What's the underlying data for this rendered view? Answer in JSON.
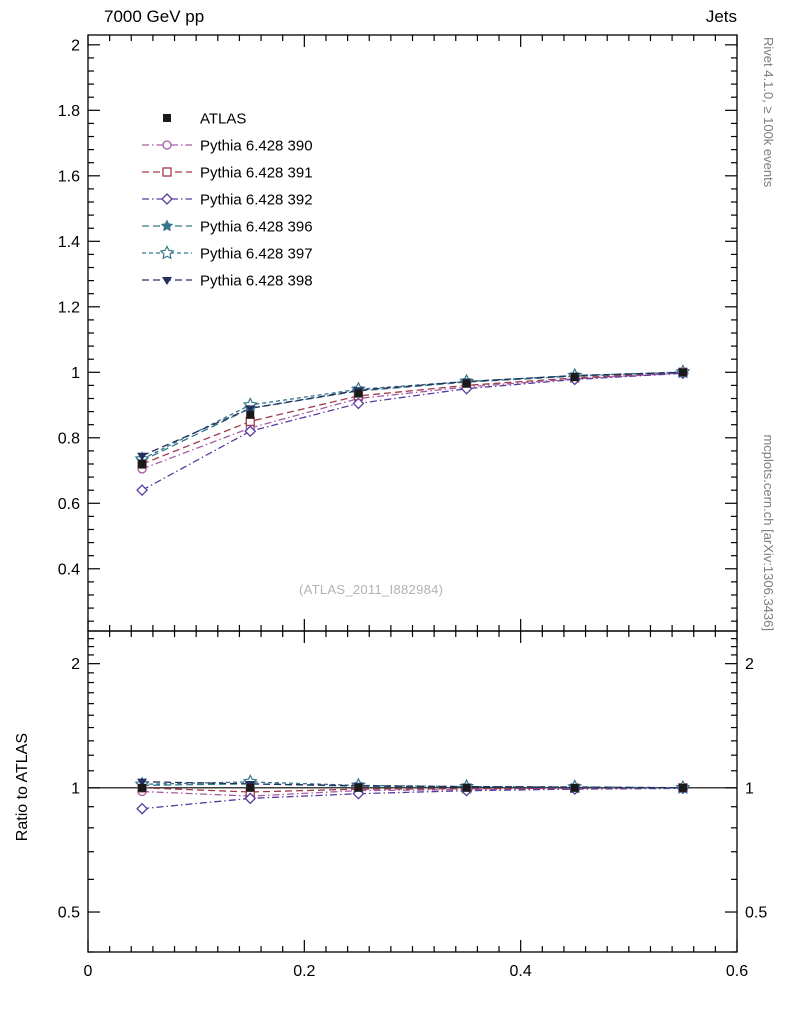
{
  "header": {
    "left": "7000 GeV pp",
    "right": "Jets"
  },
  "side_labels": {
    "top": "Rivet 4.1.0, ≥ 100k events",
    "bottom": "mcplots.cern.ch [arXiv:1306.3436]"
  },
  "watermark": "(ATLAS_2011_I882984)",
  "ratio_axis_title": "Ratio to ATLAS",
  "chart_data": {
    "type": "line",
    "x": [
      0.05,
      0.15,
      0.25,
      0.35,
      0.45,
      0.55
    ],
    "xlim": [
      0,
      0.6
    ],
    "x_ticks": [
      0,
      0.2,
      0.4,
      0.6
    ],
    "main_panel": {
      "scale": "linear",
      "ylim": [
        0.21,
        2.03
      ],
      "yticks": [
        0.4,
        0.6,
        0.8,
        1,
        1.2,
        1.4,
        1.6,
        1.8,
        2
      ]
    },
    "ratio_panel": {
      "scale": "log",
      "ylim": [
        0.4,
        2.4
      ],
      "yticks": [
        0.5,
        1,
        2
      ],
      "reference_line": 1
    },
    "series": [
      {
        "name": "ATLAS",
        "color": "#1a1a1a",
        "marker": "square-filled",
        "line": "none",
        "values": [
          0.72,
          0.87,
          0.935,
          0.965,
          0.985,
          1.0
        ],
        "err": [
          0.012,
          0.008,
          0.006,
          0.005,
          0.004,
          0.003
        ],
        "ratio": [
          1,
          1,
          1,
          1,
          1,
          1
        ],
        "ratio_err": [
          0.017,
          0.009,
          0.006,
          0.005,
          0.004,
          0.003
        ]
      },
      {
        "name": "Pythia 6.428 390",
        "color": "#a55ca5",
        "marker": "circle-open",
        "line": "dashdot",
        "values": [
          0.705,
          0.83,
          0.92,
          0.955,
          0.98,
          0.998
        ],
        "ratio": [
          0.98,
          0.955,
          0.985,
          0.99,
          0.995,
          0.998
        ]
      },
      {
        "name": "Pythia 6.428 391",
        "color": "#9e3a4a",
        "marker": "square-open",
        "line": "dashed",
        "values": [
          0.72,
          0.85,
          0.928,
          0.96,
          0.983,
          1.0
        ],
        "ratio": [
          1.0,
          0.977,
          0.993,
          0.995,
          0.998,
          1.0
        ]
      },
      {
        "name": "Pythia 6.428 392",
        "color": "#5a3a9e",
        "marker": "diamond-open",
        "line": "dashdot",
        "values": [
          0.64,
          0.82,
          0.905,
          0.95,
          0.978,
          0.997
        ],
        "ratio": [
          0.89,
          0.943,
          0.968,
          0.984,
          0.993,
          0.997
        ]
      },
      {
        "name": "Pythia 6.428 396",
        "color": "#35778c",
        "marker": "star-filled",
        "line": "dashed",
        "values": [
          0.73,
          0.89,
          0.943,
          0.97,
          0.988,
          1.0
        ],
        "ratio": [
          1.014,
          1.023,
          1.009,
          1.005,
          1.003,
          1.0
        ]
      },
      {
        "name": "Pythia 6.428 397",
        "color": "#35778c",
        "marker": "star-open",
        "line": "dashed-short",
        "values": [
          0.735,
          0.9,
          0.948,
          0.972,
          0.99,
          1.001
        ],
        "ratio": [
          1.02,
          1.034,
          1.014,
          1.007,
          1.005,
          1.001
        ]
      },
      {
        "name": "Pythia 6.428 398",
        "color": "#252f5e",
        "marker": "triangle-down-filled",
        "line": "dashed",
        "values": [
          0.745,
          0.89,
          0.945,
          0.972,
          0.99,
          1.0
        ],
        "ratio": [
          1.035,
          1.022,
          1.012,
          1.007,
          1.004,
          1.0
        ]
      }
    ]
  }
}
